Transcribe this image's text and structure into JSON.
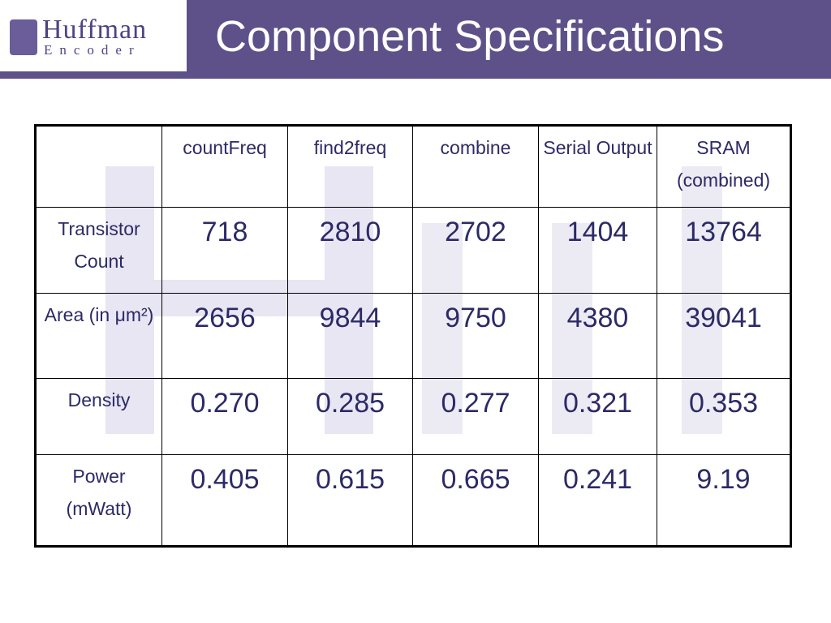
{
  "header": {
    "logo_title": "Huffman",
    "logo_subtitle": "Encoder",
    "title": "Component Specifications"
  },
  "table": {
    "columns": [
      "countFreq",
      "find2freq",
      "combine",
      "Serial Output",
      "SRAM (combined)"
    ],
    "rows": [
      {
        "label": "Transistor Count",
        "values": [
          "718",
          "2810",
          "2702",
          "1404",
          "13764"
        ]
      },
      {
        "label": "Area (in μm²)",
        "values": [
          "2656",
          "9844",
          "9750",
          "4380",
          "39041"
        ]
      },
      {
        "label": "Density",
        "values": [
          "0.270",
          "0.285",
          "0.277",
          "0.321",
          "0.353"
        ]
      },
      {
        "label": "Power (mWatt)",
        "values": [
          "0.405",
          "0.615",
          "0.665",
          "0.241",
          "9.19"
        ]
      }
    ]
  }
}
